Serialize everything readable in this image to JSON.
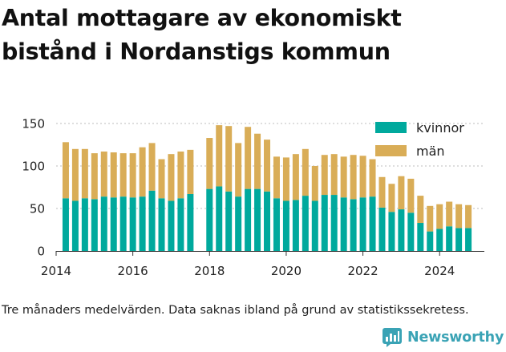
{
  "title": "Antal mottagare av ekonomiskt bistånd i Nordanstigs kommun",
  "note": "Tre månaders medelvärden. Data saknas ibland på grund av statistikssekretess.",
  "brand": {
    "name": "Newsworthy",
    "color": "#3aa3b5",
    "icon": "bar-chart-logo-icon"
  },
  "chart_data": {
    "type": "bar",
    "stacked": true,
    "title": "Antal mottagare av ekonomiskt bistånd i Nordanstigs kommun",
    "xlabel": "",
    "ylabel": "",
    "x_ticks": [
      "2014",
      "2016",
      "2018",
      "2020",
      "2022",
      "2024"
    ],
    "y_ticks": [
      0,
      50,
      100,
      150
    ],
    "ylim": [
      0,
      150
    ],
    "xlim": [
      "2014-01",
      "2025-03"
    ],
    "grid": "horizontal",
    "legend": "top-right",
    "x": [
      "2014-04",
      "2014-07",
      "2014-10",
      "2015-01",
      "2015-04",
      "2015-07",
      "2015-10",
      "2016-01",
      "2016-04",
      "2016-07",
      "2016-10",
      "2017-01",
      "2017-04",
      "2017-07",
      "2017-10",
      "2018-01",
      "2018-04",
      "2018-07",
      "2018-10",
      "2019-01",
      "2019-04",
      "2019-07",
      "2019-10",
      "2020-01",
      "2020-04",
      "2020-07",
      "2020-10",
      "2021-01",
      "2021-04",
      "2021-07",
      "2021-10",
      "2022-01",
      "2022-04",
      "2022-07",
      "2022-10",
      "2023-01",
      "2023-04",
      "2023-07",
      "2023-10",
      "2024-01",
      "2024-04",
      "2024-07",
      "2024-10"
    ],
    "series": [
      {
        "name": "kvinnor",
        "color": "#00a99d",
        "values": [
          62,
          59,
          62,
          61,
          64,
          63,
          64,
          63,
          64,
          71,
          62,
          59,
          62,
          67,
          null,
          73,
          76,
          70,
          64,
          73,
          73,
          70,
          62,
          59,
          60,
          65,
          59,
          66,
          66,
          63,
          61,
          63,
          64,
          51,
          46,
          49,
          45,
          33,
          23,
          26,
          29,
          27,
          27
        ]
      },
      {
        "name": "män",
        "color": "#d9ad57",
        "values": [
          66,
          61,
          58,
          54,
          53,
          53,
          51,
          52,
          58,
          56,
          46,
          55,
          55,
          52,
          null,
          60,
          72,
          77,
          63,
          73,
          65,
          61,
          49,
          51,
          54,
          55,
          41,
          47,
          48,
          48,
          52,
          49,
          44,
          36,
          33,
          39,
          40,
          32,
          30,
          29,
          29,
          28,
          27
        ]
      }
    ]
  }
}
